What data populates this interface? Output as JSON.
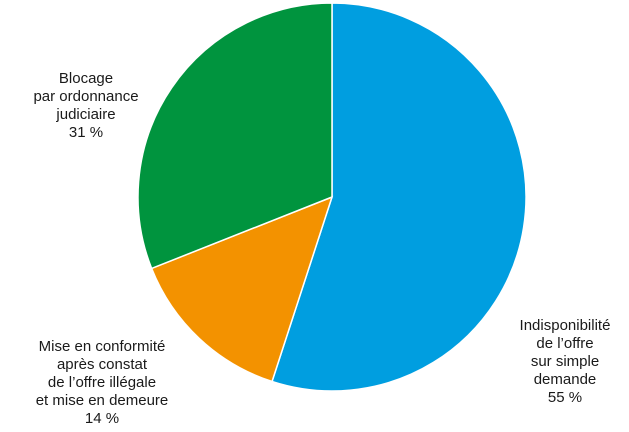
{
  "chart_data": {
    "type": "pie",
    "title": "",
    "start_angle_deg": 0,
    "direction": "clockwise",
    "legend": "none",
    "slices": [
      {
        "name": "Indisponibilité de l’offre sur simple demande",
        "value": 55,
        "value_label": "55 %",
        "label_lines": [
          "Indisponibilité",
          "de l’offre",
          "sur simple",
          "demande",
          "55 %"
        ],
        "color": "#009ee0"
      },
      {
        "name": "Mise en conformité après constat de l’offre illégale et mise en demeure",
        "value": 14,
        "value_label": "14 %",
        "label_lines": [
          "Mise en conformité",
          "après constat",
          "de l’offre illégale",
          "et mise en demeure",
          "14 %"
        ],
        "color": "#f39200"
      },
      {
        "name": "Blocage par ordonnance judiciaire",
        "value": 31,
        "value_label": "31 %",
        "label_lines": [
          "Blocage",
          "par ordonnance",
          "judiciaire",
          "31 %"
        ],
        "color": "#00943e"
      }
    ]
  }
}
